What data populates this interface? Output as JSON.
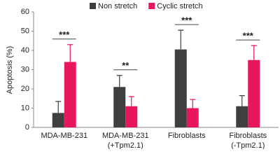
{
  "chart_data": {
    "type": "bar",
    "y_label": "Apoptosis (%)",
    "categories": [
      [
        "MDA-MB-231"
      ],
      [
        "MDA-MB-231",
        "(+Tpm2.1)"
      ],
      [
        "Fibroblasts"
      ],
      [
        "Fibroblasts",
        "(-Tpm2.1)"
      ]
    ],
    "series": [
      {
        "name": "Non stretch",
        "color": "#3f3f3f",
        "values": [
          7.5,
          21,
          40.5,
          11
        ],
        "errors": [
          6,
          6,
          10,
          5.5
        ]
      },
      {
        "name": "Cyclic stretch",
        "color": "#e8175d",
        "values": [
          34,
          11,
          10,
          35
        ],
        "errors": [
          9,
          5,
          4.5,
          7.5
        ]
      }
    ],
    "annotations": [
      "***",
      "**",
      "***",
      "***"
    ],
    "ylim": [
      0,
      60
    ],
    "yticks": [
      0,
      10,
      20,
      30,
      40,
      50,
      60
    ],
    "legend": "top"
  }
}
